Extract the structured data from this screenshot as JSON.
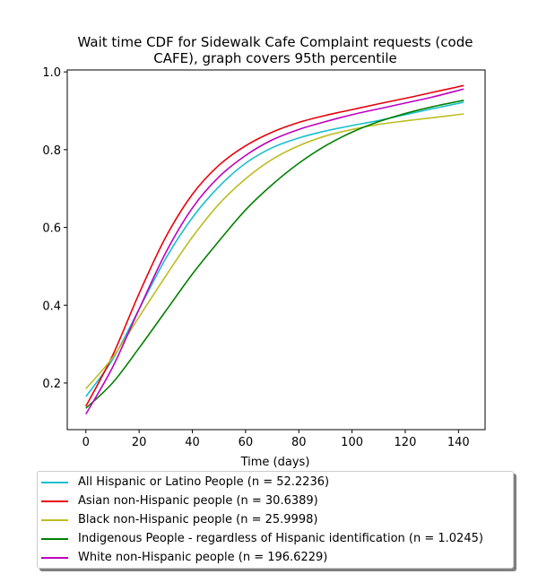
{
  "chart_data": {
    "type": "line",
    "title": "Wait time CDF for Sidewalk Cafe Complaint  requests (code CAFE), graph covers 95th percentile",
    "title_lines": [
      "Wait time CDF for Sidewalk Cafe Complaint  requests (code",
      "CAFE), graph covers 95th percentile"
    ],
    "xlabel": "Time (days)",
    "ylabel": "",
    "xlim": [
      -7,
      150
    ],
    "ylim": [
      0.08,
      1.005
    ],
    "xticks": [
      0,
      20,
      40,
      60,
      80,
      100,
      120,
      140
    ],
    "yticks": [
      0.2,
      0.4,
      0.6,
      0.8,
      1.0
    ],
    "ytick_labels": [
      "0.2",
      "0.4",
      "0.6",
      "0.8",
      "1.0"
    ],
    "grid": false,
    "legend_position": "below",
    "x": [
      0,
      10,
      20,
      30,
      40,
      50,
      60,
      70,
      80,
      90,
      100,
      110,
      120,
      130,
      142
    ],
    "series": [
      {
        "name": "All Hispanic or Latino People (n = 52.2236)",
        "color": "#17becf",
        "values": [
          0.165,
          0.26,
          0.39,
          0.52,
          0.625,
          0.705,
          0.765,
          0.805,
          0.83,
          0.848,
          0.862,
          0.875,
          0.89,
          0.905,
          0.922
        ]
      },
      {
        "name": "Asian non-Hispanic people (n = 30.6389)",
        "color": "#e8000b",
        "values": [
          0.14,
          0.27,
          0.43,
          0.575,
          0.685,
          0.76,
          0.81,
          0.845,
          0.87,
          0.888,
          0.903,
          0.918,
          0.932,
          0.947,
          0.965
        ]
      },
      {
        "name": "Black non-Hispanic people (n = 25.9998)",
        "color": "#bcbd22",
        "values": [
          0.185,
          0.265,
          0.37,
          0.475,
          0.575,
          0.66,
          0.725,
          0.775,
          0.81,
          0.835,
          0.852,
          0.865,
          0.874,
          0.882,
          0.892
        ]
      },
      {
        "name": "Indigenous People - regardless of Hispanic identification (n = 1.0245)",
        "color": "#008000",
        "values": [
          0.135,
          0.2,
          0.29,
          0.385,
          0.48,
          0.565,
          0.645,
          0.71,
          0.765,
          0.81,
          0.845,
          0.872,
          0.893,
          0.91,
          0.927
        ]
      },
      {
        "name": "White non-Hispanic people (n = 196.6229)",
        "color": "#bf00bf",
        "values": [
          0.12,
          0.24,
          0.39,
          0.535,
          0.65,
          0.73,
          0.785,
          0.825,
          0.852,
          0.872,
          0.89,
          0.905,
          0.92,
          0.935,
          0.956
        ]
      }
    ]
  }
}
